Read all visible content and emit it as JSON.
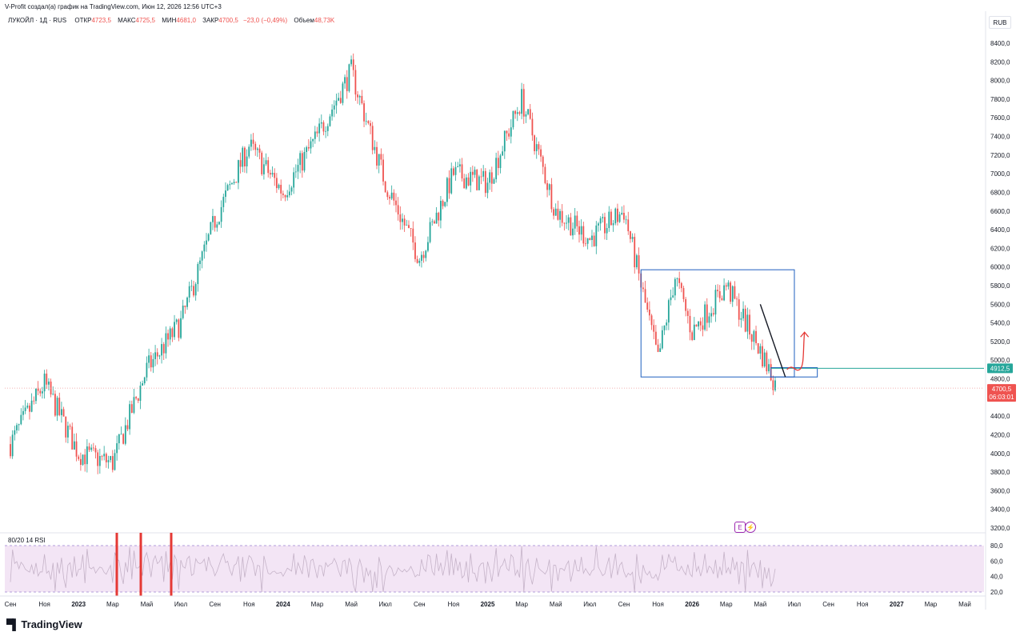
{
  "header": {
    "created_by": "V-Profit создал(а) график на TradingView.com, Июн 12, 2026 12:56 UTC+3"
  },
  "legend": {
    "symbol": "ЛУКОЙЛ · 1Д · RUS",
    "open_label": "ОТКР",
    "open": "4723,5",
    "high_label": "МАКС",
    "high": "4725,5",
    "low_label": "МИН",
    "low": "4681,0",
    "close_label": "ЗАКР",
    "close": "4700,5",
    "change": "−23,0 (−0,49%)",
    "volume_label": "Объем",
    "volume": "48,73K"
  },
  "currency": "RUB",
  "price_axis": {
    "ticks": [
      "8400,0",
      "8200,0",
      "8000,0",
      "7800,0",
      "7600,0",
      "7400,0",
      "7200,0",
      "7000,0",
      "6800,0",
      "6600,0",
      "6400,0",
      "6200,0",
      "6000,0",
      "5800,0",
      "5600,0",
      "5400,0",
      "5200,0",
      "5000,0",
      "4800,0",
      "4600,0",
      "4400,0",
      "4200,0",
      "4000,0",
      "3800,0",
      "3600,0",
      "3400,0",
      "3200,0"
    ],
    "level_label": "4912,5",
    "last_price_label": "4700,5",
    "countdown": "06:03:01"
  },
  "rsi": {
    "label": "80/20 14 RSI",
    "ticks": [
      "80,0",
      "60,0",
      "40,0",
      "20,0"
    ]
  },
  "time_axis": {
    "ticks": [
      "Сен",
      "Ноя",
      "2023",
      "Мар",
      "Май",
      "Июл",
      "Сен",
      "Ноя",
      "2024",
      "Мар",
      "Май",
      "Июл",
      "Сен",
      "Ноя",
      "2025",
      "Мар",
      "Май",
      "Июл",
      "Сен",
      "Ноя",
      "2026",
      "Мар",
      "Май",
      "Июл",
      "Сен",
      "Ноя",
      "2027",
      "Мар",
      "Май"
    ]
  },
  "badges": {
    "e": "E",
    "lightning": "⚡"
  },
  "brand": {
    "name": "TradingView"
  },
  "chart_data": {
    "type": "candlestick",
    "title": "ЛУКОЙЛ · 1Д · RUS",
    "ylabel": "RUB",
    "ylim": [
      3200,
      8400
    ],
    "x_start": "Сен 2022",
    "x_end": "Май 2027",
    "approx_close_path": [
      {
        "x": "Сен 2022",
        "y": 4100
      },
      {
        "x": "Ноя 2022",
        "y": 4750
      },
      {
        "x": "2023",
        "y": 4000
      },
      {
        "x": "Мар 2023",
        "y": 3900
      },
      {
        "x": "Май 2023",
        "y": 4900
      },
      {
        "x": "Июл 2023",
        "y": 5400
      },
      {
        "x": "Сен 2023",
        "y": 6500
      },
      {
        "x": "Ноя 2023",
        "y": 7300
      },
      {
        "x": "2024",
        "y": 6800
      },
      {
        "x": "Мар 2024",
        "y": 7400
      },
      {
        "x": "Май 2024",
        "y": 8100
      },
      {
        "x": "Июл 2024",
        "y": 6900
      },
      {
        "x": "Сен 2024",
        "y": 6100
      },
      {
        "x": "Ноя 2024",
        "y": 7000
      },
      {
        "x": "2025",
        "y": 6900
      },
      {
        "x": "Мар 2025",
        "y": 7800
      },
      {
        "x": "Май 2025",
        "y": 6600
      },
      {
        "x": "Июл 2025",
        "y": 6300
      },
      {
        "x": "Сен 2025",
        "y": 6600
      },
      {
        "x": "Ноя 2025",
        "y": 5000
      },
      {
        "x": "Дек 2025",
        "y": 5900
      },
      {
        "x": "2026",
        "y": 5300
      },
      {
        "x": "Мар 2026",
        "y": 5800
      },
      {
        "x": "Май 2026",
        "y": 5100
      },
      {
        "x": "Июн 2026",
        "y": 4700
      }
    ],
    "last_close": 4700.5,
    "horizontal_level": 4912.5,
    "annotations": {
      "range_box": {
        "y_top": 5970,
        "y_bottom": 4820,
        "from": "Окт 2025",
        "to": "Июл 2026"
      },
      "small_box": {
        "y_top": 4920,
        "y_bottom": 4820
      },
      "trend_line": {
        "from": {
          "x": "Май 2026",
          "y": 5600
        },
        "to": {
          "x": "Июн 2026",
          "y": 4820
        }
      },
      "projection_arrow": {
        "from": 4900,
        "to": 5300,
        "color": "#e53935"
      }
    },
    "rsi": {
      "name": "RSI",
      "period": 14,
      "upper_band": 80,
      "lower_band": 20,
      "ylim": [
        20,
        80
      ]
    },
    "colors": {
      "up": "#26a69a",
      "down": "#ef5350",
      "rsi_band": "#f3e5f5",
      "rsi_line": "#c5b3c8",
      "box": "#1e5fbf",
      "level": "#26a69a",
      "marker": "#e53935"
    }
  }
}
